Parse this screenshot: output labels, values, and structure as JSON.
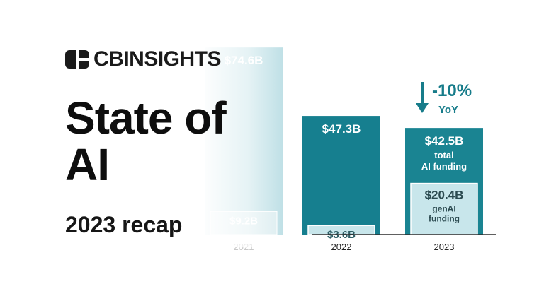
{
  "brand": {
    "name": "CBINSIGHTS"
  },
  "headline": {
    "line1": "State of",
    "line2": "AI"
  },
  "subheadline": "2023 recap",
  "colors": {
    "bar_2021": "#bfe0e6",
    "bar_2022": "#167f8f",
    "bar_2023": "#1a8492",
    "inner_bar": "#c8e6eb",
    "arrow": "#177c8a",
    "axis": "#2b2b2b"
  },
  "chart_data": {
    "type": "bar",
    "categories": [
      "2021",
      "2022",
      "2023"
    ],
    "series": [
      {
        "name": "total AI funding",
        "values": [
          74.6,
          47.3,
          42.5
        ],
        "labels": [
          "$74.6B",
          "$47.3B",
          "$42.5B"
        ]
      },
      {
        "name": "genAI funding",
        "values": [
          9.2,
          3.6,
          20.4
        ],
        "labels": [
          "$9.2B",
          "$3.6B",
          "$20.4B"
        ]
      }
    ],
    "annotations": {
      "total_label": "total\nAI funding",
      "genai_label": "genAI\nfunding",
      "change": "-10%",
      "change_period": "YoY"
    },
    "ylim": [
      0,
      80
    ]
  }
}
